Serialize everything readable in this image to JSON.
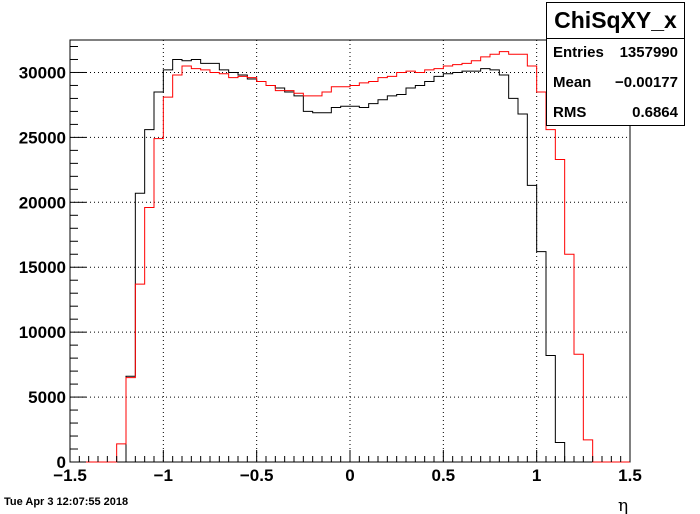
{
  "chart_data": {
    "type": "histogram",
    "title": "ChiSqXY_x",
    "xlabel": "η",
    "ylabel": "",
    "xlim": [
      -1.5,
      1.5
    ],
    "ylim": [
      0,
      32500
    ],
    "grid": true,
    "x_ticks": [
      "−1.5",
      "−1",
      "−0.5",
      "0",
      "0.5",
      "1",
      "1.5"
    ],
    "y_ticks": [
      "0",
      "5000",
      "10000",
      "15000",
      "20000",
      "25000",
      "30000"
    ],
    "bin_edges_start": -1.5,
    "bin_width": 0.05,
    "series": [
      {
        "color": "#000000",
        "values": [
          0,
          0,
          0,
          0,
          0,
          0,
          6600,
          20700,
          25600,
          28500,
          30200,
          31000,
          30900,
          31000,
          30700,
          30700,
          30200,
          30000,
          29800,
          29500,
          29300,
          29000,
          28800,
          28500,
          28200,
          27000,
          26900,
          26900,
          27300,
          27400,
          27400,
          27300,
          27600,
          27900,
          28200,
          28300,
          28800,
          29000,
          29300,
          29700,
          29900,
          30000,
          30100,
          30100,
          30300,
          30200,
          29800,
          28000,
          26800,
          21300,
          16200,
          8200,
          1500,
          0,
          0,
          0,
          0,
          0,
          0,
          0
        ]
      },
      {
        "color": "#ff0000",
        "values": [
          0,
          0,
          0,
          0,
          0,
          1400,
          6500,
          13700,
          19600,
          24900,
          28100,
          29800,
          30500,
          30300,
          30200,
          30000,
          29900,
          29600,
          29700,
          29600,
          29300,
          29000,
          28600,
          28600,
          28400,
          28200,
          28200,
          28500,
          28900,
          28900,
          29000,
          29200,
          29300,
          29600,
          29700,
          30000,
          30100,
          30000,
          30200,
          30300,
          30500,
          30600,
          30700,
          30900,
          31200,
          31400,
          31600,
          31400,
          31400,
          30500,
          28500,
          25600,
          23300,
          16000,
          8300,
          1700,
          0,
          0,
          0,
          0
        ]
      }
    ]
  },
  "stats": {
    "title": "ChiSqXY_x",
    "entries_label": "Entries",
    "entries_value": "1357990",
    "mean_label": "Mean",
    "mean_value": "−0.00177",
    "rms_label": "RMS",
    "rms_value": "0.6864"
  },
  "timestamp": "Tue Apr  3 12:07:55 2018"
}
